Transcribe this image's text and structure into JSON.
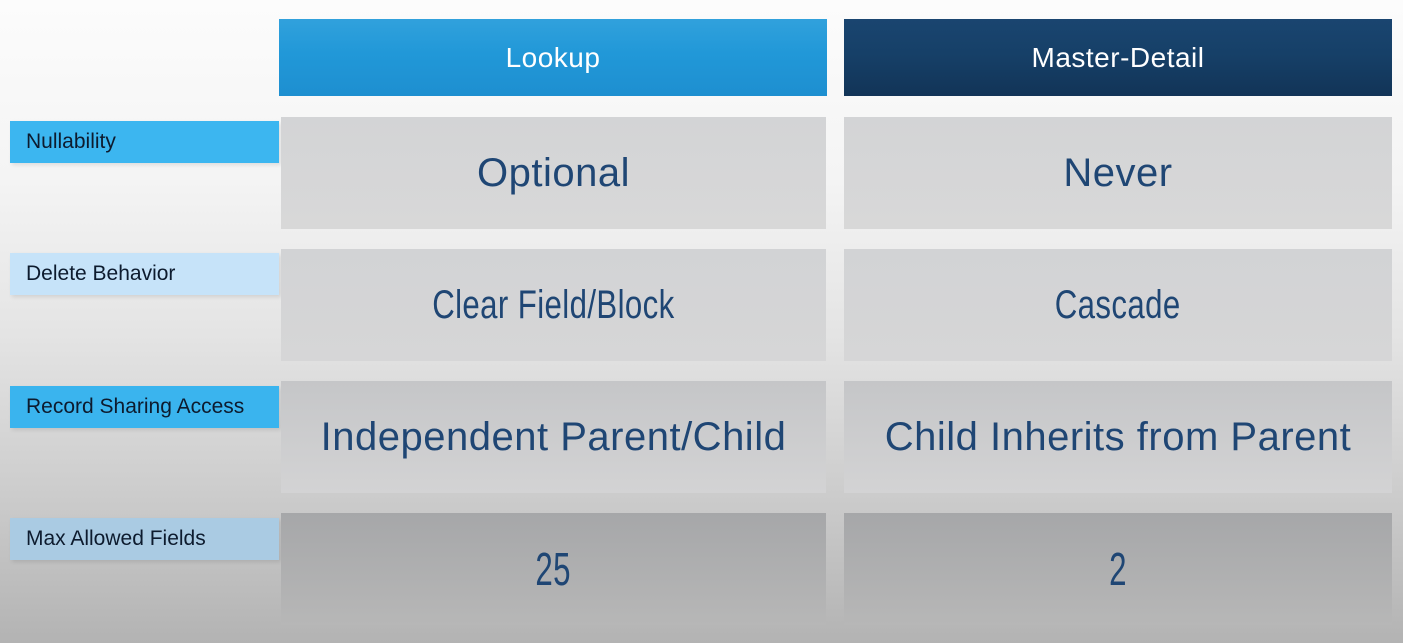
{
  "colors": {
    "lookup_header_bg": "#2198d8",
    "master_detail_header_bg": "#164068",
    "bright_row_label_bg": "#3cb6f0",
    "pale_row_label_bg": "#c6e3f9",
    "muted_row_label_bg": "#aacbe3",
    "header_text": "#ffffff",
    "value_text": "#1f4674",
    "row_label_text": "#0d1b2e",
    "cell_bg": "#d5d5d6"
  },
  "table": {
    "column_headers": [
      {
        "label": "Lookup",
        "bg": "#2198d8"
      },
      {
        "label": "Master-Detail",
        "bg": "#164068"
      }
    ],
    "rows": [
      {
        "label": "Nullability",
        "label_bg": "#3cb6f0",
        "cells": [
          "Optional",
          "Never"
        ]
      },
      {
        "label": "Delete Behavior",
        "label_bg": "#c6e3f9",
        "cells": [
          "Clear Field/Block",
          "Cascade"
        ]
      },
      {
        "label": "Record Sharing Access",
        "label_bg": "#3ab4ee",
        "cells": [
          "Independent Parent/Child",
          "Child Inherits from Parent"
        ]
      },
      {
        "label": "Max Allowed Fields",
        "label_bg": "#aacbe3",
        "cells": [
          "25",
          "2"
        ]
      }
    ]
  },
  "chart_data": {
    "type": "table",
    "columns": [
      "",
      "Lookup",
      "Master-Detail"
    ],
    "rows": [
      [
        "Nullability",
        "Optional",
        "Never"
      ],
      [
        "Delete Behavior",
        "Clear Field/Block",
        "Cascade"
      ],
      [
        "Record Sharing Access",
        "Independent Parent/Child",
        "Child Inherits from Parent"
      ],
      [
        "Max Allowed Fields",
        "25",
        "2"
      ]
    ]
  }
}
